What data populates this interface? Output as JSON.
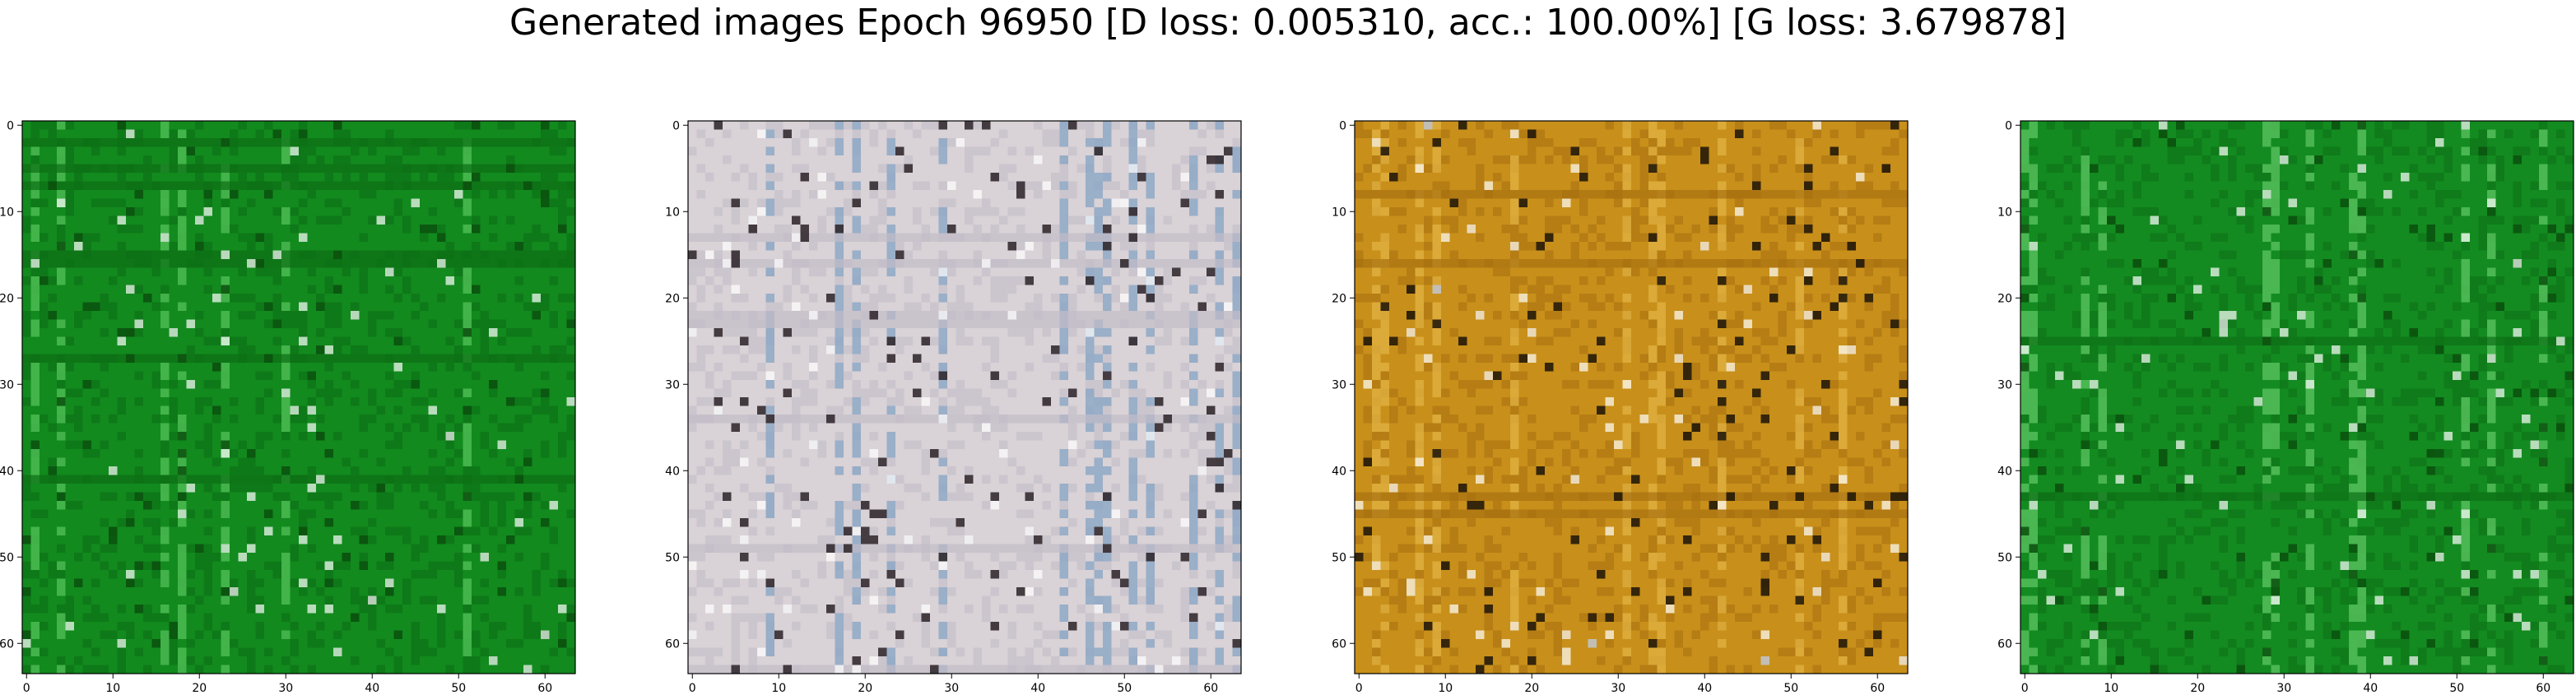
{
  "figure": {
    "title": "Generated images Epoch 96950 [D loss: 0.005310, acc.: 100.00%] [G loss: 3.679878]"
  },
  "chart_data": [
    {
      "type": "heatmap",
      "content": "generated image (RGB, 64x64 pixels)",
      "dominant_colors": [
        "#128a1e",
        "#0c6e14",
        "#4fbf55",
        "#0a4f0d"
      ],
      "xlim": [
        -0.5,
        63.5
      ],
      "ylim": [
        63.5,
        -0.5
      ],
      "x_ticks": [
        "0",
        "10",
        "20",
        "30",
        "40",
        "50",
        "60"
      ],
      "y_ticks": [
        "0",
        "10",
        "20",
        "30",
        "40",
        "50",
        "60"
      ],
      "grid": false
    },
    {
      "type": "heatmap",
      "content": "generated image (RGB, 64x64 pixels)",
      "dominant_colors": [
        "#d9d2d6",
        "#c2bcc8",
        "#8aa6c4",
        "#2a2226"
      ],
      "xlim": [
        -0.5,
        63.5
      ],
      "ylim": [
        63.5,
        -0.5
      ],
      "x_ticks": [
        "0",
        "10",
        "20",
        "30",
        "40",
        "50",
        "60"
      ],
      "y_ticks": [
        "0",
        "10",
        "20",
        "30",
        "40",
        "50",
        "60"
      ],
      "grid": false
    },
    {
      "type": "heatmap",
      "content": "generated image (RGB, 64x64 pixels)",
      "dominant_colors": [
        "#c8901a",
        "#a87010",
        "#e0b040",
        "#1a1208"
      ],
      "xlim": [
        -0.5,
        63.5
      ],
      "ylim": [
        63.5,
        -0.5
      ],
      "x_ticks": [
        "0",
        "10",
        "20",
        "30",
        "40",
        "50",
        "60"
      ],
      "y_ticks": [
        "0",
        "10",
        "20",
        "30",
        "40",
        "50",
        "60"
      ],
      "grid": false
    },
    {
      "type": "heatmap",
      "content": "generated image (RGB, 64x64 pixels)",
      "dominant_colors": [
        "#138b20",
        "#0d7016",
        "#58c25e",
        "#0a4f0d"
      ],
      "xlim": [
        -0.5,
        63.5
      ],
      "ylim": [
        63.5,
        -0.5
      ],
      "x_ticks": [
        "0",
        "10",
        "20",
        "30",
        "40",
        "50",
        "60"
      ],
      "y_ticks": [
        "0",
        "10",
        "20",
        "30",
        "40",
        "50",
        "60"
      ],
      "grid": false
    }
  ]
}
